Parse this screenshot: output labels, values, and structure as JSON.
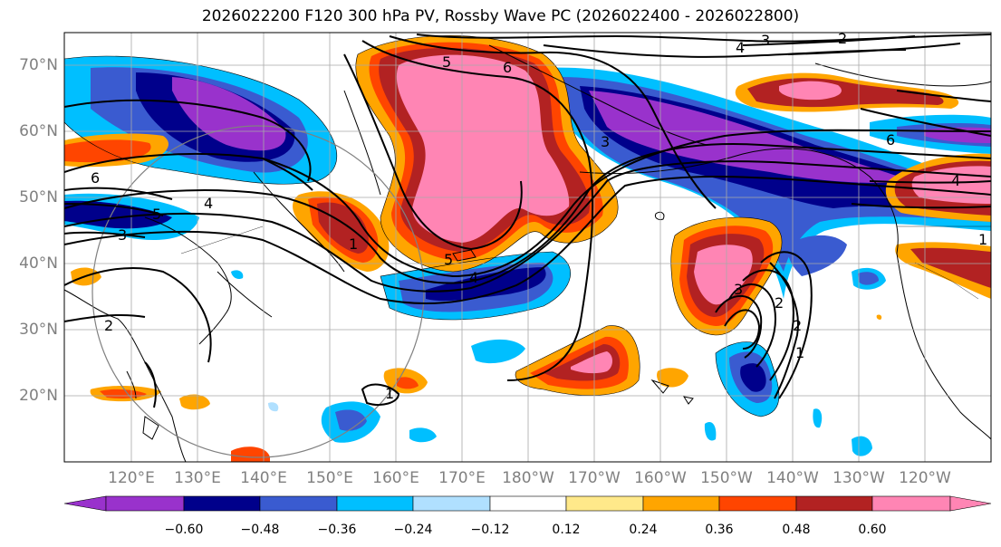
{
  "title": "2026022200 F120 300 hPa PV, Rossby Wave PC (2026022400 - 2026022800)",
  "lat_labels": [
    "70°N",
    "60°N",
    "50°N",
    "40°N",
    "30°N",
    "20°N"
  ],
  "lon_labels": [
    "120°E",
    "130°E",
    "140°E",
    "150°E",
    "160°E",
    "170°E",
    "180°W",
    "170°W",
    "160°W",
    "150°W",
    "140°W",
    "130°W",
    "120°W"
  ],
  "colorbar": {
    "colors": [
      "#9932cc",
      "#00008b",
      "#3a5bd0",
      "#00bfff",
      "#b0e0ff",
      "#ffffff",
      "#ffe98a",
      "#ffa500",
      "#ff4500",
      "#b22222",
      "#ff85b4"
    ],
    "tick_labels": [
      "−0.60",
      "−0.48",
      "−0.36",
      "−0.24",
      "−0.12",
      "0.12",
      "0.24",
      "0.36",
      "0.48",
      "0.60"
    ]
  },
  "contour_labels": [
    "3",
    "2",
    "4",
    "5",
    "6",
    "6",
    "5",
    "4",
    "3",
    "3",
    "6",
    "4",
    "5",
    "4",
    "1",
    "2",
    "1",
    "2",
    "3",
    "1",
    "2",
    "1"
  ]
}
